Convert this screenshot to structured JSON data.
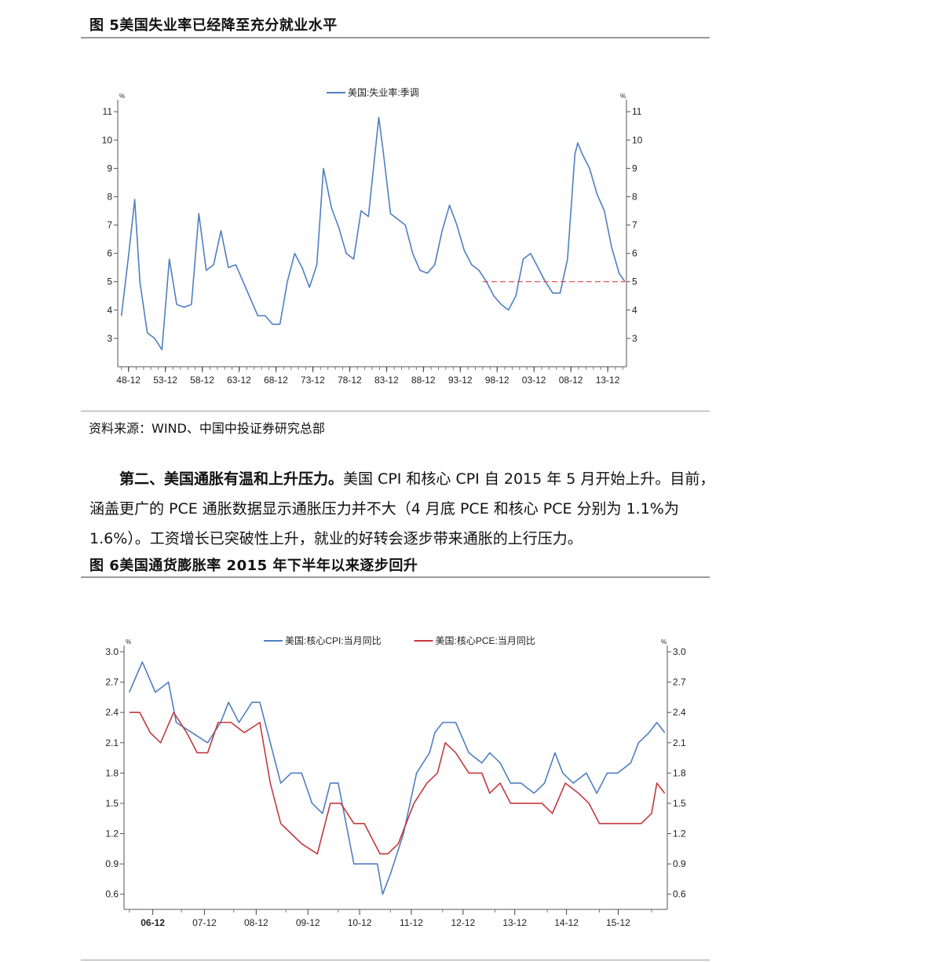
{
  "figure5": {
    "title": "图 5美国失业率已经降至充分就业水平",
    "source": "资料来源：WIND、中国中投证券研究总部"
  },
  "paragraph": {
    "lead": "第二、美国通胀有温和上升压力。",
    "body": "美国 CPI 和核心 CPI 自 2015 年 5 月开始上升。目前，涵盖更广的 PCE 通胀数据显示通胀压力并不大（4 月底 PCE 和核心 PCE 分别为 1.1%为 1.6%）。工资增长已突破性上升，就业的好转会逐步带来通胀的上行压力。"
  },
  "figure6": {
    "title": "图 6美国通货膨胀率 2015 年下半年以来逐步回升"
  },
  "chart_data": [
    {
      "type": "line",
      "unit": "%",
      "ylim": [
        2,
        11.2
      ],
      "yticks": [
        3,
        4,
        5,
        6,
        7,
        8,
        9,
        10,
        11
      ],
      "xticks": [
        "48-12",
        "53-12",
        "58-12",
        "63-12",
        "68-12",
        "73-12",
        "78-12",
        "83-12",
        "88-12",
        "93-12",
        "98-12",
        "03-12",
        "08-12",
        "13-12"
      ],
      "legend_position": "top",
      "series": [
        {
          "name": "美国:失业率:季调",
          "color": "#4f7fc0",
          "x": [
            1948.0,
            1949.0,
            1949.8,
            1950.5,
            1951.5,
            1952.5,
            1953.5,
            1954.5,
            1955.5,
            1956.5,
            1957.5,
            1958.5,
            1959.5,
            1960.5,
            1961.5,
            1962.5,
            1963.5,
            1964.5,
            1965.5,
            1966.5,
            1967.5,
            1968.5,
            1969.5,
            1970.5,
            1971.5,
            1972.5,
            1973.5,
            1974.5,
            1975.4,
            1976.5,
            1977.5,
            1978.5,
            1979.5,
            1980.5,
            1981.5,
            1982.9,
            1983.5,
            1984.5,
            1985.5,
            1986.5,
            1987.5,
            1988.5,
            1989.5,
            1990.5,
            1991.5,
            1992.5,
            1993.5,
            1994.5,
            1995.5,
            1996.5,
            1997.5,
            1998.5,
            1999.5,
            2000.5,
            2001.5,
            2002.5,
            2003.5,
            2004.5,
            2005.5,
            2006.5,
            2007.5,
            2008.5,
            2009.5,
            2009.9,
            2010.5,
            2011.5,
            2012.5,
            2013.5,
            2014.5,
            2015.5,
            2016.3
          ],
          "values": [
            3.8,
            6.0,
            7.9,
            5.0,
            3.2,
            3.0,
            2.6,
            5.8,
            4.2,
            4.1,
            4.2,
            7.4,
            5.4,
            5.6,
            6.8,
            5.5,
            5.6,
            5.0,
            4.4,
            3.8,
            3.8,
            3.5,
            3.5,
            5.0,
            6.0,
            5.5,
            4.8,
            5.6,
            9.0,
            7.6,
            6.9,
            6.0,
            5.8,
            7.5,
            7.3,
            10.8,
            9.6,
            7.4,
            7.2,
            7.0,
            6.0,
            5.4,
            5.3,
            5.6,
            6.8,
            7.7,
            7.0,
            6.1,
            5.6,
            5.4,
            5.0,
            4.5,
            4.2,
            4.0,
            4.5,
            5.8,
            6.0,
            5.5,
            5.0,
            4.6,
            4.6,
            5.8,
            9.5,
            9.9,
            9.5,
            9.0,
            8.1,
            7.5,
            6.2,
            5.3,
            5.0
          ]
        },
        {
          "name": "",
          "color": "#e2414a",
          "dashed": true,
          "x": [
            1997.0,
            2016.3
          ],
          "values": [
            5.0,
            5.0
          ]
        }
      ]
    },
    {
      "type": "line",
      "unit": "%",
      "ylim": [
        0.45,
        3.0
      ],
      "yticks": [
        0.6,
        0.9,
        1.2,
        1.5,
        1.8,
        2.1,
        2.4,
        2.7,
        3.0
      ],
      "xticks": [
        "06-12",
        "07-12",
        "08-12",
        "09-12",
        "10-12",
        "11-12",
        "12-12",
        "13-12",
        "14-12",
        "15-12"
      ],
      "legend_position": "top",
      "series": [
        {
          "name": "美国:核心CPI:当月同比",
          "color": "#4f7fc0",
          "x": [
            2006.0,
            2006.25,
            2006.5,
            2006.75,
            2006.9,
            2007.2,
            2007.5,
            2007.75,
            2007.9,
            2008.1,
            2008.35,
            2008.5,
            2008.7,
            2008.9,
            2009.1,
            2009.3,
            2009.5,
            2009.7,
            2009.85,
            2010.0,
            2010.3,
            2010.5,
            2010.75,
            2010.85,
            2011.0,
            2011.25,
            2011.5,
            2011.75,
            2011.85,
            2012.0,
            2012.25,
            2012.5,
            2012.75,
            2012.9,
            2013.1,
            2013.3,
            2013.5,
            2013.75,
            2013.95,
            2014.15,
            2014.3,
            2014.5,
            2014.75,
            2014.95,
            2015.15,
            2015.35,
            2015.6,
            2015.75,
            2015.95,
            2016.1,
            2016.25
          ],
          "values": [
            2.6,
            2.9,
            2.6,
            2.7,
            2.3,
            2.2,
            2.1,
            2.3,
            2.5,
            2.3,
            2.5,
            2.5,
            2.1,
            1.7,
            1.8,
            1.8,
            1.5,
            1.4,
            1.7,
            1.7,
            0.9,
            0.9,
            0.9,
            0.6,
            0.8,
            1.2,
            1.8,
            2.0,
            2.2,
            2.3,
            2.3,
            2.0,
            1.9,
            2.0,
            1.9,
            1.7,
            1.7,
            1.6,
            1.7,
            2.0,
            1.8,
            1.7,
            1.8,
            1.6,
            1.8,
            1.8,
            1.9,
            2.1,
            2.2,
            2.3,
            2.2
          ]
        },
        {
          "name": "美国:核心PCE:当月同比",
          "color": "#c3393f",
          "x": [
            2006.0,
            2006.2,
            2006.4,
            2006.6,
            2006.85,
            2007.1,
            2007.3,
            2007.5,
            2007.7,
            2007.95,
            2008.2,
            2008.5,
            2008.7,
            2008.9,
            2009.1,
            2009.3,
            2009.6,
            2009.85,
            2010.05,
            2010.3,
            2010.5,
            2010.8,
            2010.95,
            2011.15,
            2011.45,
            2011.7,
            2011.9,
            2012.05,
            2012.25,
            2012.5,
            2012.75,
            2012.9,
            2013.1,
            2013.3,
            2013.6,
            2013.9,
            2014.1,
            2014.35,
            2014.6,
            2014.8,
            2015.0,
            2015.2,
            2015.4,
            2015.6,
            2015.8,
            2016.0,
            2016.1,
            2016.25
          ],
          "values": [
            2.4,
            2.4,
            2.2,
            2.1,
            2.4,
            2.2,
            2.0,
            2.0,
            2.3,
            2.3,
            2.2,
            2.3,
            1.7,
            1.3,
            1.2,
            1.1,
            1.0,
            1.5,
            1.5,
            1.3,
            1.3,
            1.0,
            1.0,
            1.1,
            1.5,
            1.7,
            1.8,
            2.1,
            2.0,
            1.8,
            1.8,
            1.6,
            1.7,
            1.5,
            1.5,
            1.5,
            1.4,
            1.7,
            1.6,
            1.5,
            1.3,
            1.3,
            1.3,
            1.3,
            1.3,
            1.4,
            1.7,
            1.6
          ]
        }
      ]
    }
  ]
}
